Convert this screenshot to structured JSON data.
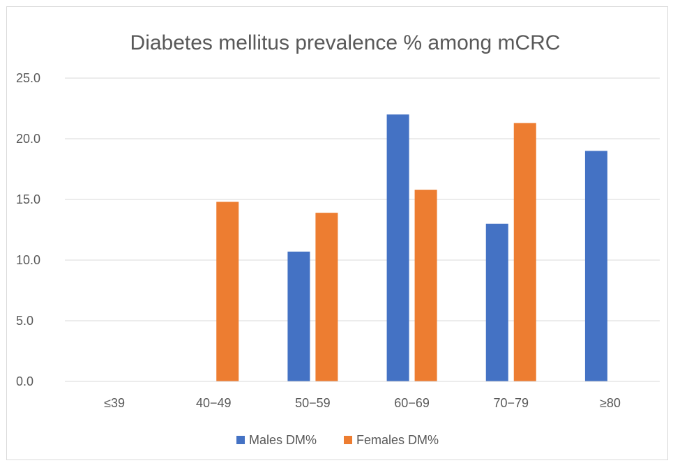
{
  "chart_data": {
    "type": "bar",
    "title": "Diabetes mellitus prevalence % among mCRC",
    "categories": [
      "≤39",
      "40−49",
      "50−59",
      "60−69",
      "70−79",
      "≥80"
    ],
    "series": [
      {
        "name": "Males DM%",
        "color": "#4472C4",
        "values": [
          0,
          0,
          10.7,
          22.0,
          13.0,
          19.0
        ]
      },
      {
        "name": "Females DM%",
        "color": "#ED7D31",
        "values": [
          0,
          14.8,
          13.9,
          15.8,
          21.3,
          0
        ]
      }
    ],
    "yticks": [
      "0.0",
      "5.0",
      "10.0",
      "15.0",
      "20.0",
      "25.0"
    ],
    "ylim": [
      0,
      25
    ],
    "grid": true,
    "legend_position": "bottom"
  }
}
